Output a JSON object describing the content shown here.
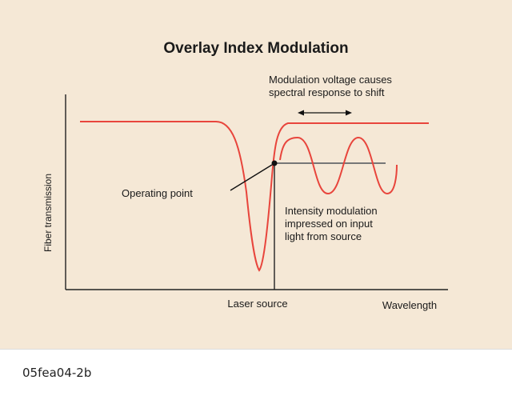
{
  "title": "Overlay Index Modulation",
  "annotations": {
    "shift_line1": "Modulation voltage causes",
    "shift_line2": "spectral response to shift",
    "operating_point": "Operating point",
    "intensity_line1": "Intensity modulation",
    "intensity_line2": "impressed on input",
    "intensity_line3": "light from source"
  },
  "axes": {
    "y_label": "Fiber transmission",
    "x_label": "Wavelength",
    "x_marker": "Laser source"
  },
  "caption": "05fea04-2b",
  "colors": {
    "background": "#f5e8d6",
    "curve": "#e8453c",
    "axis": "#222222",
    "operating_line": "#777777"
  }
}
